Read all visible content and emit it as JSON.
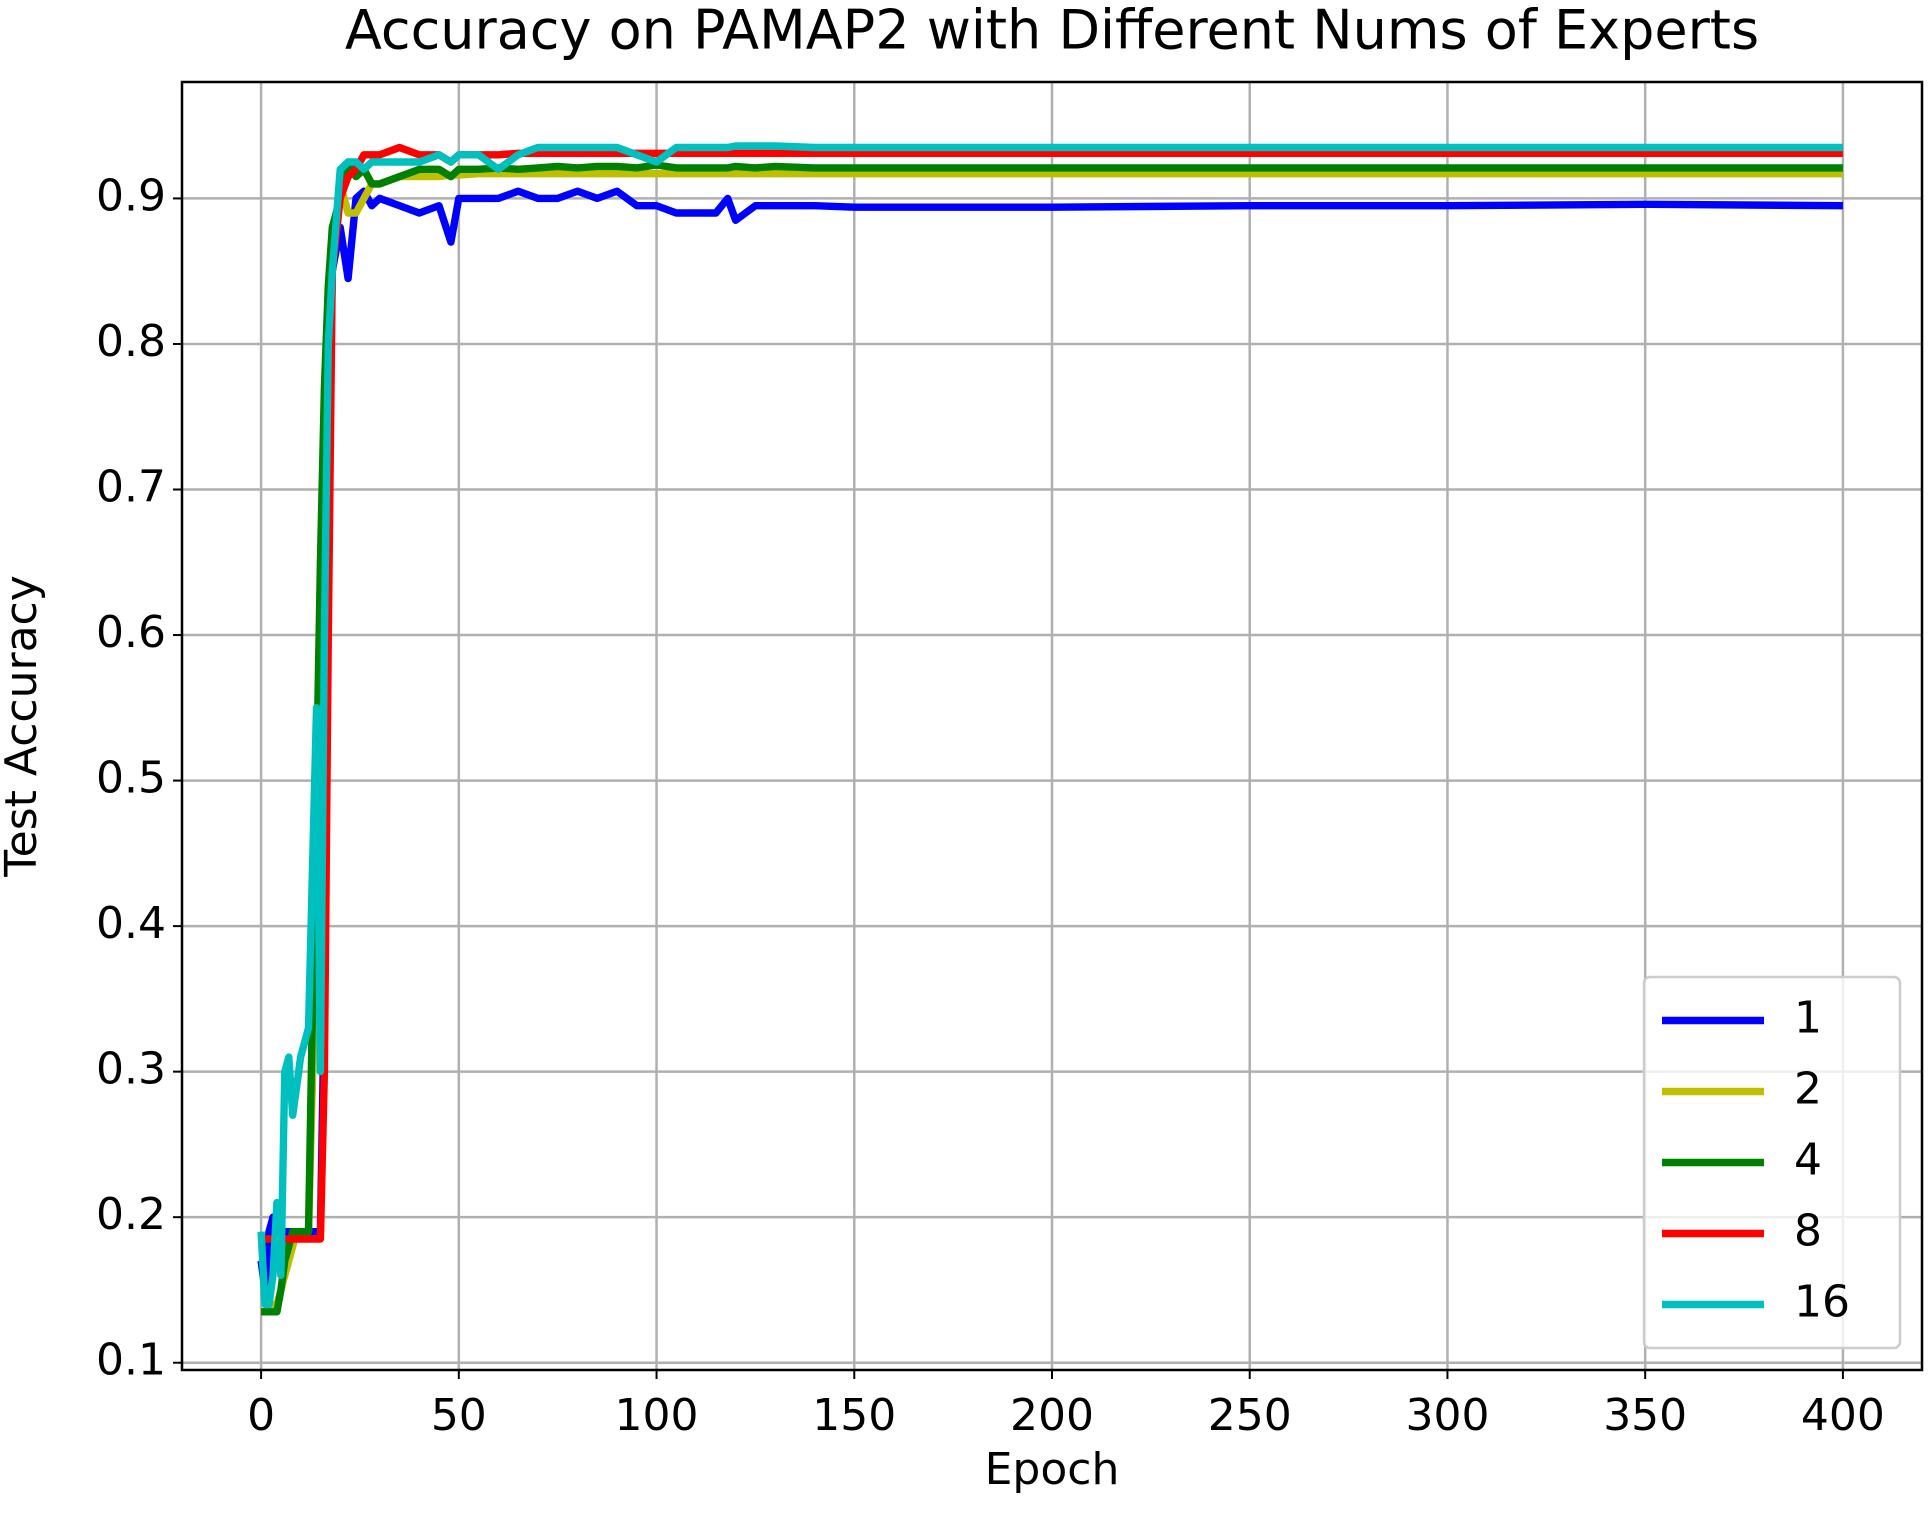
{
  "chart_data": {
    "type": "line",
    "title": "Accuracy on PAMAP2 with Different Nums of Experts",
    "x_label": "Epoch",
    "y_label": "Test Accuracy",
    "x": [
      0,
      1,
      2,
      3,
      4,
      5,
      6,
      7,
      8,
      9,
      10,
      12,
      14,
      15,
      16,
      17,
      18,
      20,
      22,
      24,
      26,
      28,
      30,
      35,
      40,
      45,
      48,
      50,
      55,
      60,
      65,
      70,
      75,
      80,
      85,
      90,
      95,
      100,
      105,
      110,
      115,
      118,
      120,
      125,
      130,
      140,
      150,
      200,
      250,
      300,
      350,
      400
    ],
    "series": [
      {
        "name": "1",
        "color": "#0000ff",
        "values": [
          0.17,
          0.15,
          0.19,
          0.2,
          0.19,
          0.18,
          0.19,
          0.19,
          0.19,
          0.19,
          0.19,
          0.19,
          0.19,
          0.19,
          0.35,
          0.7,
          0.85,
          0.88,
          0.845,
          0.9,
          0.905,
          0.895,
          0.9,
          0.895,
          0.89,
          0.895,
          0.87,
          0.9,
          0.9,
          0.9,
          0.905,
          0.9,
          0.9,
          0.905,
          0.9,
          0.905,
          0.895,
          0.895,
          0.89,
          0.89,
          0.89,
          0.9,
          0.885,
          0.895,
          0.895,
          0.895,
          0.894,
          0.894,
          0.895,
          0.895,
          0.896,
          0.895
        ]
      },
      {
        "name": "2",
        "color": "#bfbf00",
        "values": [
          0.135,
          0.135,
          0.135,
          0.14,
          0.14,
          0.15,
          0.16,
          0.17,
          0.18,
          0.19,
          0.19,
          0.19,
          0.4,
          0.6,
          0.75,
          0.82,
          0.86,
          0.91,
          0.89,
          0.89,
          0.9,
          0.91,
          0.91,
          0.915,
          0.915,
          0.915,
          0.916,
          0.916,
          0.917,
          0.917,
          0.917,
          0.917,
          0.917,
          0.917,
          0.917,
          0.917,
          0.917,
          0.917,
          0.917,
          0.917,
          0.917,
          0.917,
          0.917,
          0.917,
          0.917,
          0.917,
          0.917,
          0.917,
          0.917,
          0.917,
          0.917,
          0.917
        ]
      },
      {
        "name": "4",
        "color": "#008000",
        "values": [
          0.135,
          0.135,
          0.135,
          0.135,
          0.135,
          0.15,
          0.17,
          0.18,
          0.19,
          0.19,
          0.19,
          0.19,
          0.5,
          0.65,
          0.77,
          0.84,
          0.88,
          0.9,
          0.925,
          0.915,
          0.92,
          0.91,
          0.91,
          0.915,
          0.92,
          0.92,
          0.915,
          0.92,
          0.92,
          0.921,
          0.92,
          0.921,
          0.922,
          0.921,
          0.922,
          0.922,
          0.921,
          0.923,
          0.921,
          0.921,
          0.921,
          0.921,
          0.922,
          0.921,
          0.922,
          0.921,
          0.921,
          0.921,
          0.921,
          0.921,
          0.921,
          0.921
        ]
      },
      {
        "name": "8",
        "color": "#ff0000",
        "values": [
          0.185,
          0.185,
          0.185,
          0.185,
          0.185,
          0.185,
          0.185,
          0.185,
          0.185,
          0.185,
          0.185,
          0.185,
          0.185,
          0.185,
          0.3,
          0.6,
          0.85,
          0.9,
          0.915,
          0.92,
          0.93,
          0.93,
          0.93,
          0.935,
          0.93,
          0.93,
          0.925,
          0.93,
          0.93,
          0.93,
          0.931,
          0.931,
          0.931,
          0.931,
          0.931,
          0.931,
          0.931,
          0.931,
          0.931,
          0.931,
          0.931,
          0.931,
          0.931,
          0.931,
          0.931,
          0.931,
          0.931,
          0.931,
          0.931,
          0.931,
          0.931,
          0.931
        ]
      },
      {
        "name": "16",
        "color": "#00bfbf",
        "values": [
          0.19,
          0.14,
          0.14,
          0.16,
          0.21,
          0.16,
          0.3,
          0.31,
          0.27,
          0.29,
          0.31,
          0.33,
          0.55,
          0.3,
          0.6,
          0.8,
          0.85,
          0.92,
          0.925,
          0.925,
          0.92,
          0.925,
          0.925,
          0.925,
          0.925,
          0.93,
          0.925,
          0.93,
          0.93,
          0.92,
          0.93,
          0.935,
          0.935,
          0.935,
          0.935,
          0.935,
          0.93,
          0.925,
          0.935,
          0.935,
          0.935,
          0.935,
          0.936,
          0.936,
          0.936,
          0.935,
          0.935,
          0.935,
          0.935,
          0.935,
          0.935,
          0.935
        ]
      }
    ],
    "xlim": [
      -20,
      420
    ],
    "ylim": [
      0.095,
      0.98
    ],
    "xticks": [
      0,
      50,
      100,
      150,
      200,
      250,
      300,
      350,
      400
    ],
    "yticks": [
      0.1,
      0.2,
      0.3,
      0.4,
      0.5,
      0.6,
      0.7,
      0.8,
      0.9
    ],
    "grid": true,
    "legend": "lower right"
  }
}
